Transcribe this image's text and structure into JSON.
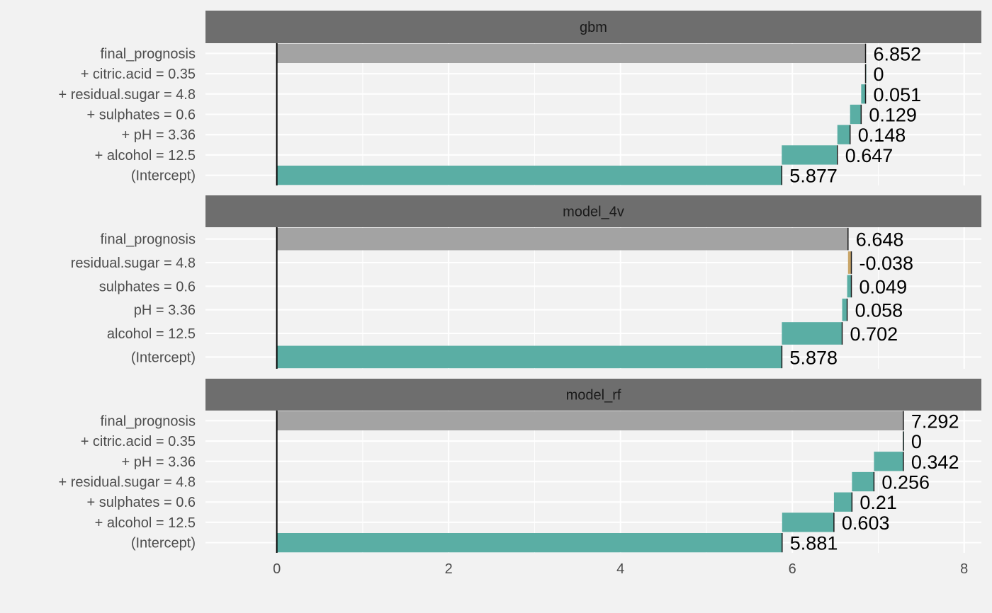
{
  "chart_data": {
    "type": "bar",
    "subtype": "break-down waterfall",
    "xlim": [
      -0.83,
      8.2
    ],
    "x_ticks": [
      "0",
      "2",
      "4",
      "6",
      "8"
    ],
    "grid": true,
    "colors": {
      "positive": "#5aaea4",
      "negative": "#c9a669",
      "prediction": "#a3a3a3",
      "strip_bg": "#6e6e6e",
      "panel_bg": "#f2f2f2",
      "grid": "#ffffff"
    },
    "panels": [
      {
        "label": "gbm",
        "rows": [
          {
            "label": "final_prognosis",
            "start": 0,
            "end": 6.852,
            "value_label": "6.852",
            "kind": "prediction"
          },
          {
            "label": "+ citric.acid = 0.35",
            "start": 6.852,
            "end": 6.852,
            "value_label": "0",
            "kind": "positive"
          },
          {
            "label": "+ residual.sugar = 4.8",
            "start": 6.801,
            "end": 6.852,
            "value_label": "0.051",
            "kind": "positive"
          },
          {
            "label": "+ sulphates = 0.6",
            "start": 6.672,
            "end": 6.801,
            "value_label": "0.129",
            "kind": "positive"
          },
          {
            "label": "+ pH = 3.36",
            "start": 6.524,
            "end": 6.672,
            "value_label": "0.148",
            "kind": "positive"
          },
          {
            "label": "+ alcohol = 12.5",
            "start": 5.877,
            "end": 6.524,
            "value_label": "0.647",
            "kind": "positive"
          },
          {
            "label": "(Intercept)",
            "start": 0,
            "end": 5.877,
            "value_label": "5.877",
            "kind": "positive"
          }
        ]
      },
      {
        "label": "model_4v",
        "rows": [
          {
            "label": "final_prognosis",
            "start": 0,
            "end": 6.648,
            "value_label": "6.648",
            "kind": "prediction"
          },
          {
            "label": "residual.sugar = 4.8",
            "start": 6.648,
            "end": 6.687,
            "value_label": "-0.038",
            "kind": "negative"
          },
          {
            "label": "sulphates = 0.6",
            "start": 6.638,
            "end": 6.687,
            "value_label": "0.049",
            "kind": "positive"
          },
          {
            "label": "pH = 3.36",
            "start": 6.58,
            "end": 6.638,
            "value_label": "0.058",
            "kind": "positive"
          },
          {
            "label": "alcohol = 12.5",
            "start": 5.878,
            "end": 6.58,
            "value_label": "0.702",
            "kind": "positive"
          },
          {
            "label": "(Intercept)",
            "start": 0,
            "end": 5.878,
            "value_label": "5.878",
            "kind": "positive"
          }
        ]
      },
      {
        "label": "model_rf",
        "rows": [
          {
            "label": "final_prognosis",
            "start": 0,
            "end": 7.292,
            "value_label": "7.292",
            "kind": "prediction"
          },
          {
            "label": "+ citric.acid = 0.35",
            "start": 7.292,
            "end": 7.292,
            "value_label": "0",
            "kind": "positive"
          },
          {
            "label": "+ pH = 3.36",
            "start": 6.95,
            "end": 7.292,
            "value_label": "0.342",
            "kind": "positive"
          },
          {
            "label": "+ residual.sugar = 4.8",
            "start": 6.694,
            "end": 6.95,
            "value_label": "0.256",
            "kind": "positive"
          },
          {
            "label": "+ sulphates = 0.6",
            "start": 6.484,
            "end": 6.694,
            "value_label": "0.21",
            "kind": "positive"
          },
          {
            "label": "+ alcohol = 12.5",
            "start": 5.881,
            "end": 6.484,
            "value_label": "0.603",
            "kind": "positive"
          },
          {
            "label": "(Intercept)",
            "start": 0,
            "end": 5.881,
            "value_label": "5.881",
            "kind": "positive"
          }
        ]
      }
    ]
  }
}
